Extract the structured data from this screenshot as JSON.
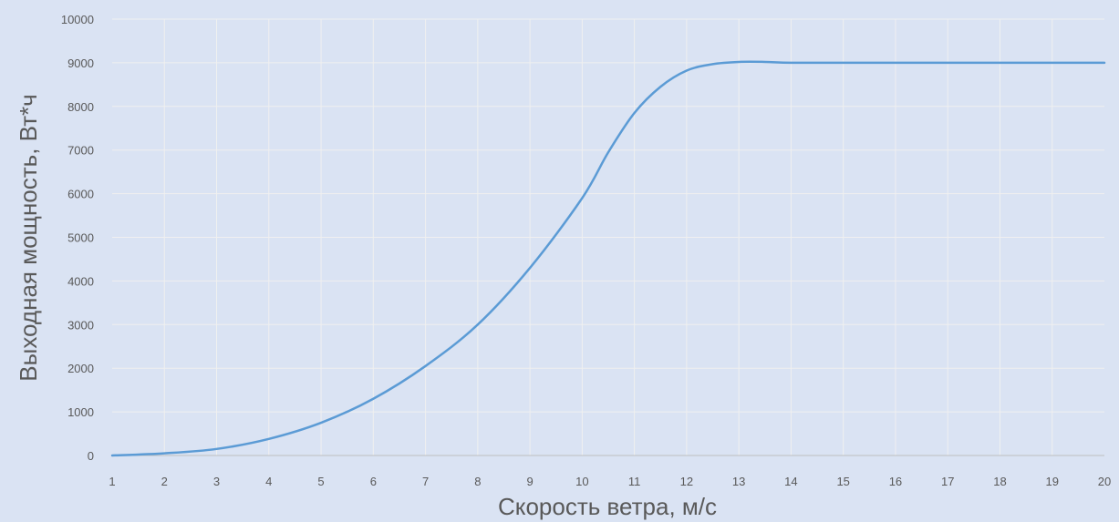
{
  "chart_data": {
    "type": "line",
    "title": "",
    "xlabel": "Скорость ветра, м/с",
    "ylabel": "Выходная мощность, Вт*ч",
    "xlim": [
      1,
      20
    ],
    "ylim": [
      0,
      10000
    ],
    "x_ticks": [
      "1",
      "2",
      "3",
      "4",
      "5",
      "6",
      "7",
      "8",
      "9",
      "10",
      "11",
      "12",
      "13",
      "14",
      "15",
      "16",
      "17",
      "18",
      "19",
      "20"
    ],
    "y_ticks": [
      "0",
      "1000",
      "2000",
      "3000",
      "4000",
      "5000",
      "6000",
      "7000",
      "8000",
      "9000",
      "10000"
    ],
    "grid": true,
    "legend": "none",
    "series": [
      {
        "color": "#5b9bd5",
        "x": [
          1,
          2,
          3,
          4,
          5,
          6,
          7,
          8,
          9,
          10,
          10.5,
          11,
          11.5,
          12,
          12.5,
          13,
          13.5,
          14,
          15,
          16,
          17,
          18,
          19,
          20
        ],
        "y": [
          0,
          50,
          150,
          380,
          750,
          1300,
          2050,
          3000,
          4300,
          5900,
          6950,
          7850,
          8450,
          8820,
          8970,
          9020,
          9020,
          9000,
          9000,
          9000,
          9000,
          9000,
          9000,
          9000
        ]
      }
    ]
  }
}
